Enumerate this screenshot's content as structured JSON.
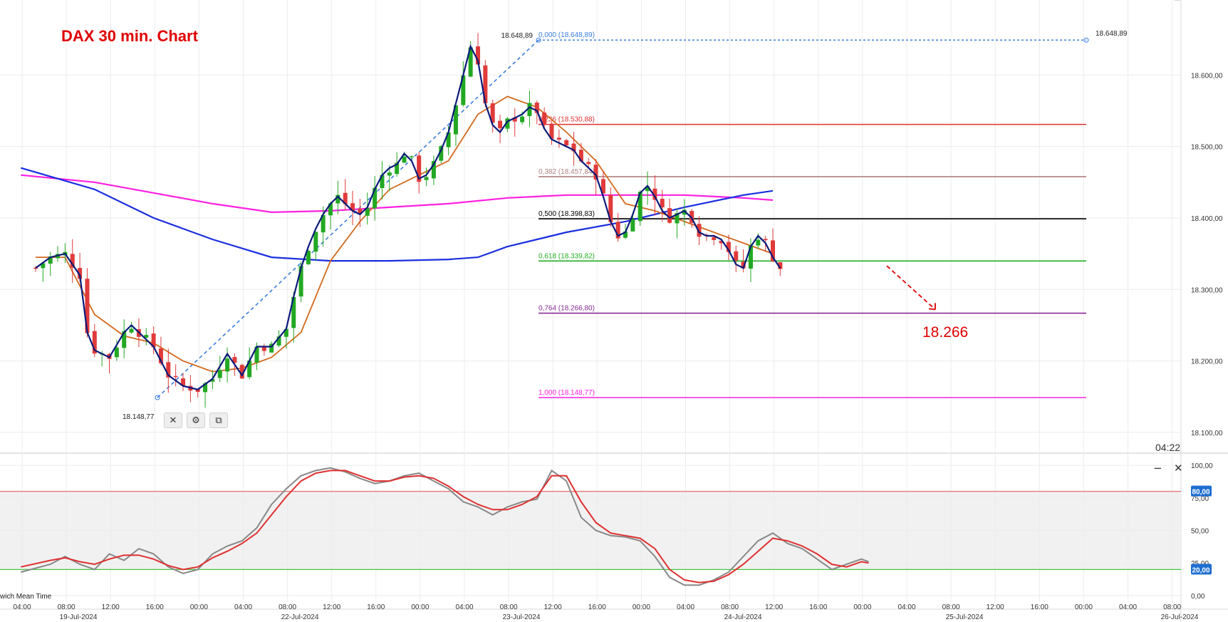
{
  "chart_data": [
    {
      "type": "candlestick",
      "title": "DAX 30 min. Chart",
      "y_axis_position": "right",
      "ylim": [
        18080,
        18680
      ],
      "yticks": [
        "18.100,00",
        "18.200,00",
        "18.300,00",
        "18.400,00",
        "18.500,00",
        "18.600,00"
      ],
      "ytick_values": [
        18100,
        18200,
        18300,
        18400,
        18500,
        18600
      ],
      "grid": true,
      "time_labels": [
        "04:00",
        "08:00",
        "12:00",
        "16:00",
        "00:00",
        "04:00",
        "08:00",
        "12:00",
        "16:00",
        "00:00",
        "04:00",
        "08:00",
        "12:00",
        "16:00",
        "00:00",
        "04:00",
        "08:00",
        "12:00",
        "16:00",
        "00:00",
        "04:00",
        "08:00",
        "12:00",
        "16:00",
        "00:00",
        "04:00",
        "08:00"
      ],
      "date_labels": [
        "19-Jul-2024",
        "22-Jul-2024",
        "23-Jul-2024",
        "24-Jul-2024",
        "25-Jul-2024",
        "26-Jul-2024"
      ],
      "bars_count": 99,
      "close_path": [
        [
          0,
          18330
        ],
        [
          2,
          18345
        ],
        [
          4,
          18350
        ],
        [
          6,
          18320
        ],
        [
          7,
          18240
        ],
        [
          8,
          18215
        ],
        [
          10,
          18205
        ],
        [
          12,
          18240
        ],
        [
          13,
          18250
        ],
        [
          14,
          18240
        ],
        [
          16,
          18220
        ],
        [
          18,
          18180
        ],
        [
          20,
          18165
        ],
        [
          22,
          18160
        ],
        [
          24,
          18175
        ],
        [
          26,
          18210
        ],
        [
          27,
          18195
        ],
        [
          28,
          18180
        ],
        [
          29,
          18200
        ],
        [
          30,
          18220
        ],
        [
          32,
          18220
        ],
        [
          34,
          18245
        ],
        [
          35,
          18290
        ],
        [
          36,
          18330
        ],
        [
          37,
          18360
        ],
        [
          38,
          18385
        ],
        [
          39,
          18405
        ],
        [
          40,
          18420
        ],
        [
          41,
          18430
        ],
        [
          42,
          18420
        ],
        [
          43,
          18410
        ],
        [
          44,
          18405
        ],
        [
          45,
          18415
        ],
        [
          46,
          18440
        ],
        [
          47,
          18460
        ],
        [
          48,
          18470
        ],
        [
          49,
          18475
        ],
        [
          50,
          18490
        ],
        [
          51,
          18480
        ],
        [
          52,
          18455
        ],
        [
          53,
          18460
        ],
        [
          54,
          18475
        ],
        [
          55,
          18495
        ],
        [
          56,
          18520
        ],
        [
          57,
          18560
        ],
        [
          58,
          18600
        ],
        [
          59,
          18640
        ],
        [
          60,
          18620
        ],
        [
          61,
          18560
        ],
        [
          62,
          18530
        ],
        [
          63,
          18520
        ],
        [
          64,
          18535
        ],
        [
          65,
          18540
        ],
        [
          66,
          18545
        ],
        [
          67,
          18555
        ],
        [
          68,
          18550
        ],
        [
          69,
          18525
        ],
        [
          70,
          18510
        ],
        [
          71,
          18505
        ],
        [
          72,
          18500
        ],
        [
          73,
          18495
        ],
        [
          74,
          18480
        ],
        [
          75,
          18470
        ],
        [
          76,
          18460
        ],
        [
          77,
          18430
        ],
        [
          78,
          18395
        ],
        [
          79,
          18375
        ],
        [
          80,
          18380
        ],
        [
          81,
          18405
        ],
        [
          82,
          18435
        ],
        [
          83,
          18445
        ],
        [
          84,
          18430
        ],
        [
          85,
          18410
        ],
        [
          86,
          18400
        ],
        [
          87,
          18405
        ],
        [
          88,
          18410
        ],
        [
          89,
          18400
        ],
        [
          90,
          18380
        ],
        [
          91,
          18375
        ],
        [
          92,
          18375
        ],
        [
          93,
          18370
        ],
        [
          94,
          18355
        ],
        [
          95,
          18335
        ],
        [
          96,
          18330
        ],
        [
          97,
          18360
        ],
        [
          98,
          18375
        ],
        [
          99,
          18365
        ],
        [
          100,
          18345
        ],
        [
          101,
          18330
        ]
      ],
      "ema_orange": [
        [
          0,
          18345
        ],
        [
          4,
          18345
        ],
        [
          8,
          18265
        ],
        [
          12,
          18235
        ],
        [
          16,
          18225
        ],
        [
          20,
          18200
        ],
        [
          24,
          18185
        ],
        [
          28,
          18190
        ],
        [
          32,
          18205
        ],
        [
          36,
          18240
        ],
        [
          40,
          18340
        ],
        [
          44,
          18395
        ],
        [
          48,
          18440
        ],
        [
          52,
          18460
        ],
        [
          56,
          18480
        ],
        [
          60,
          18545
        ],
        [
          64,
          18570
        ],
        [
          68,
          18555
        ],
        [
          72,
          18520
        ],
        [
          76,
          18480
        ],
        [
          80,
          18420
        ],
        [
          84,
          18410
        ],
        [
          88,
          18395
        ],
        [
          92,
          18380
        ],
        [
          96,
          18365
        ],
        [
          100,
          18350
        ]
      ],
      "ma_magenta": [
        [
          -2,
          18460
        ],
        [
          8,
          18450
        ],
        [
          16,
          18435
        ],
        [
          24,
          18420
        ],
        [
          32,
          18408
        ],
        [
          40,
          18410
        ],
        [
          48,
          18415
        ],
        [
          56,
          18420
        ],
        [
          64,
          18428
        ],
        [
          72,
          18432
        ],
        [
          80,
          18432
        ],
        [
          88,
          18432
        ],
        [
          96,
          18428
        ],
        [
          100,
          18425
        ]
      ],
      "ma_blue": [
        [
          -2,
          18470
        ],
        [
          8,
          18440
        ],
        [
          16,
          18400
        ],
        [
          24,
          18370
        ],
        [
          32,
          18345
        ],
        [
          40,
          18340
        ],
        [
          48,
          18340
        ],
        [
          56,
          18342
        ],
        [
          60,
          18345
        ],
        [
          64,
          18360
        ],
        [
          72,
          18380
        ],
        [
          80,
          18395
        ],
        [
          88,
          18415
        ],
        [
          96,
          18432
        ],
        [
          100,
          18438
        ]
      ],
      "fibonacci": {
        "high_label": "18.648,89",
        "low_label": "18.148,77",
        "levels": [
          {
            "ratio": "0,000 (18.648,89)",
            "value": 18648.89,
            "color": "#3a7ee0"
          },
          {
            "ratio": "0,236 (18.530,88)",
            "value": 18530.88,
            "color": "#e03030"
          },
          {
            "ratio": "0,382 (18.457,84)",
            "value": 18457.84,
            "color": "#b08080"
          },
          {
            "ratio": "0,500 (18.398,83)",
            "value": 18398.83,
            "color": "#000000"
          },
          {
            "ratio": "0,618 (18.339,82)",
            "value": 18339.82,
            "color": "#20b020"
          },
          {
            "ratio": "0,764 (18.266,80)",
            "value": 18266.8,
            "color": "#8a2a9a"
          },
          {
            "ratio": "1,000 (18.148,77)",
            "value": 18148.77,
            "color": "#ff20e0"
          }
        ]
      },
      "annotation": {
        "text": "18.266",
        "color": "#e00000"
      },
      "clock": "04:22"
    },
    {
      "type": "line",
      "panel": "stochastic oscillator",
      "ylim": [
        -5,
        105
      ],
      "yticks": [
        "0,00",
        "25,00",
        "50,00",
        "75,00",
        "100,00"
      ],
      "ytick_values": [
        0,
        25,
        50,
        75,
        100
      ],
      "levels": [
        {
          "label": "80,00",
          "value": 80,
          "color": "#e06060"
        },
        {
          "label": "20,00",
          "value": 20,
          "color": "#30c030"
        }
      ],
      "series": [
        {
          "color": "#888888",
          "values": [
            [
              -2,
              18
            ],
            [
              2,
              24
            ],
            [
              4,
              30
            ],
            [
              6,
              24
            ],
            [
              8,
              20
            ],
            [
              10,
              32
            ],
            [
              12,
              27
            ],
            [
              14,
              36
            ],
            [
              16,
              32
            ],
            [
              18,
              22
            ],
            [
              20,
              17
            ],
            [
              22,
              20
            ],
            [
              24,
              32
            ],
            [
              26,
              38
            ],
            [
              28,
              42
            ],
            [
              30,
              52
            ],
            [
              32,
              70
            ],
            [
              34,
              82
            ],
            [
              36,
              92
            ],
            [
              38,
              96
            ],
            [
              40,
              98
            ],
            [
              42,
              95
            ],
            [
              44,
              90
            ],
            [
              46,
              86
            ],
            [
              48,
              88
            ],
            [
              50,
              92
            ],
            [
              52,
              94
            ],
            [
              54,
              88
            ],
            [
              56,
              82
            ],
            [
              58,
              72
            ],
            [
              60,
              68
            ],
            [
              62,
              62
            ],
            [
              64,
              68
            ],
            [
              66,
              72
            ],
            [
              68,
              74
            ],
            [
              70,
              96
            ],
            [
              72,
              88
            ],
            [
              74,
              60
            ],
            [
              76,
              50
            ],
            [
              78,
              46
            ],
            [
              80,
              45
            ],
            [
              82,
              42
            ],
            [
              84,
              30
            ],
            [
              86,
              14
            ],
            [
              88,
              8
            ],
            [
              90,
              8
            ],
            [
              92,
              12
            ],
            [
              94,
              18
            ],
            [
              96,
              30
            ],
            [
              98,
              42
            ],
            [
              100,
              48
            ],
            [
              102,
              40
            ],
            [
              104,
              36
            ],
            [
              106,
              28
            ],
            [
              108,
              20
            ],
            [
              110,
              24
            ],
            [
              112,
              28
            ],
            [
              113,
              26
            ]
          ]
        },
        {
          "color": "#e03030",
          "values": [
            [
              -2,
              22
            ],
            [
              2,
              27
            ],
            [
              4,
              29
            ],
            [
              6,
              26
            ],
            [
              8,
              24
            ],
            [
              10,
              28
            ],
            [
              12,
              31
            ],
            [
              14,
              31
            ],
            [
              16,
              28
            ],
            [
              18,
              23
            ],
            [
              20,
              20
            ],
            [
              22,
              22
            ],
            [
              24,
              29
            ],
            [
              26,
              34
            ],
            [
              28,
              40
            ],
            [
              30,
              48
            ],
            [
              32,
              62
            ],
            [
              34,
              76
            ],
            [
              36,
              88
            ],
            [
              38,
              94
            ],
            [
              40,
              96
            ],
            [
              42,
              96
            ],
            [
              44,
              92
            ],
            [
              46,
              88
            ],
            [
              48,
              88
            ],
            [
              50,
              91
            ],
            [
              52,
              92
            ],
            [
              54,
              90
            ],
            [
              56,
              84
            ],
            [
              58,
              76
            ],
            [
              60,
              70
            ],
            [
              62,
              66
            ],
            [
              64,
              66
            ],
            [
              66,
              70
            ],
            [
              68,
              76
            ],
            [
              70,
              92
            ],
            [
              72,
              92
            ],
            [
              74,
              72
            ],
            [
              76,
              56
            ],
            [
              78,
              48
            ],
            [
              80,
              46
            ],
            [
              82,
              44
            ],
            [
              84,
              36
            ],
            [
              86,
              20
            ],
            [
              88,
              12
            ],
            [
              90,
              10
            ],
            [
              92,
              11
            ],
            [
              94,
              16
            ],
            [
              96,
              24
            ],
            [
              98,
              34
            ],
            [
              100,
              44
            ],
            [
              102,
              42
            ],
            [
              104,
              38
            ],
            [
              106,
              32
            ],
            [
              108,
              24
            ],
            [
              110,
              22
            ],
            [
              112,
              26
            ],
            [
              113,
              25
            ]
          ]
        }
      ]
    }
  ],
  "ui": {
    "timezone_label": "wich Mean Time",
    "close_symbol": "✕",
    "gear_symbol": "⚙",
    "copy_symbol": "⧉",
    "minimize_symbol": "−"
  }
}
